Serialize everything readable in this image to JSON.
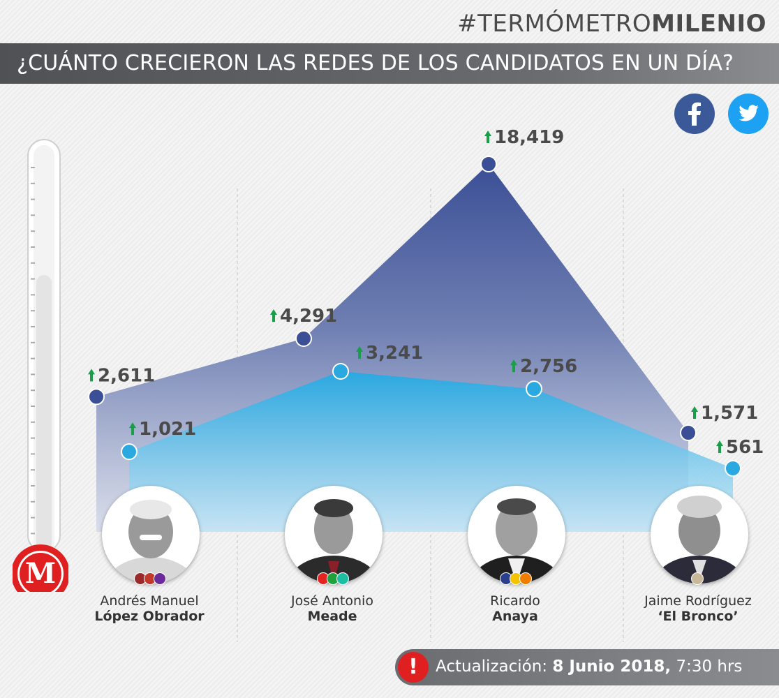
{
  "brand": {
    "prefix": "#TERMÓMETRO",
    "bold": "MILENIO"
  },
  "title": "¿CUÁNTO CRECIERON LAS REDES DE LOS CANDIDATOS EN UN DÍA?",
  "logo_letter": "M",
  "icons": {
    "facebook": "facebook-icon",
    "twitter": "twitter-icon",
    "alert": "alert-icon"
  },
  "colors": {
    "facebook": "#3b5998",
    "twitter": "#2aa8e0",
    "arrow": "#1a9e4a",
    "logo": "#e02020"
  },
  "chart_data": {
    "type": "area",
    "categories": [
      "Andrés Manuel López Obrador",
      "José Antonio Meade",
      "Ricardo Anaya",
      "Jaime Rodríguez ‘El Bronco’"
    ],
    "series": [
      {
        "icon": "facebook-icon",
        "values": [
          2611,
          4291,
          18419,
          1571
        ],
        "labels": [
          "2,611",
          "4,291",
          "18,419",
          "1,571"
        ]
      },
      {
        "icon": "twitter-icon",
        "values": [
          1021,
          3241,
          2756,
          561
        ],
        "labels": [
          "1,021",
          "3,241",
          "2,756",
          "561"
        ]
      }
    ]
  },
  "candidates": [
    {
      "first": "Andrés Manuel",
      "last": "López Obrador",
      "party_colors": [
        "#9b2a2a",
        "#c0392b",
        "#6a2a9a"
      ]
    },
    {
      "first": "José Antonio",
      "last": "Meade",
      "party_colors": [
        "#e52421",
        "#1fa23c",
        "#1dbfa3"
      ]
    },
    {
      "first": "Ricardo",
      "last": "Anaya",
      "party_colors": [
        "#2b3f8f",
        "#f4c400",
        "#ef7d00"
      ]
    },
    {
      "first": "Jaime Rodríguez",
      "last": "‘El Bronco’",
      "party_colors": [
        "#c8b89a"
      ]
    }
  ],
  "footer": {
    "label": "Actualización:",
    "date": "8 Junio 2018,",
    "time": "7:30 hrs",
    "alert_symbol": "!"
  }
}
